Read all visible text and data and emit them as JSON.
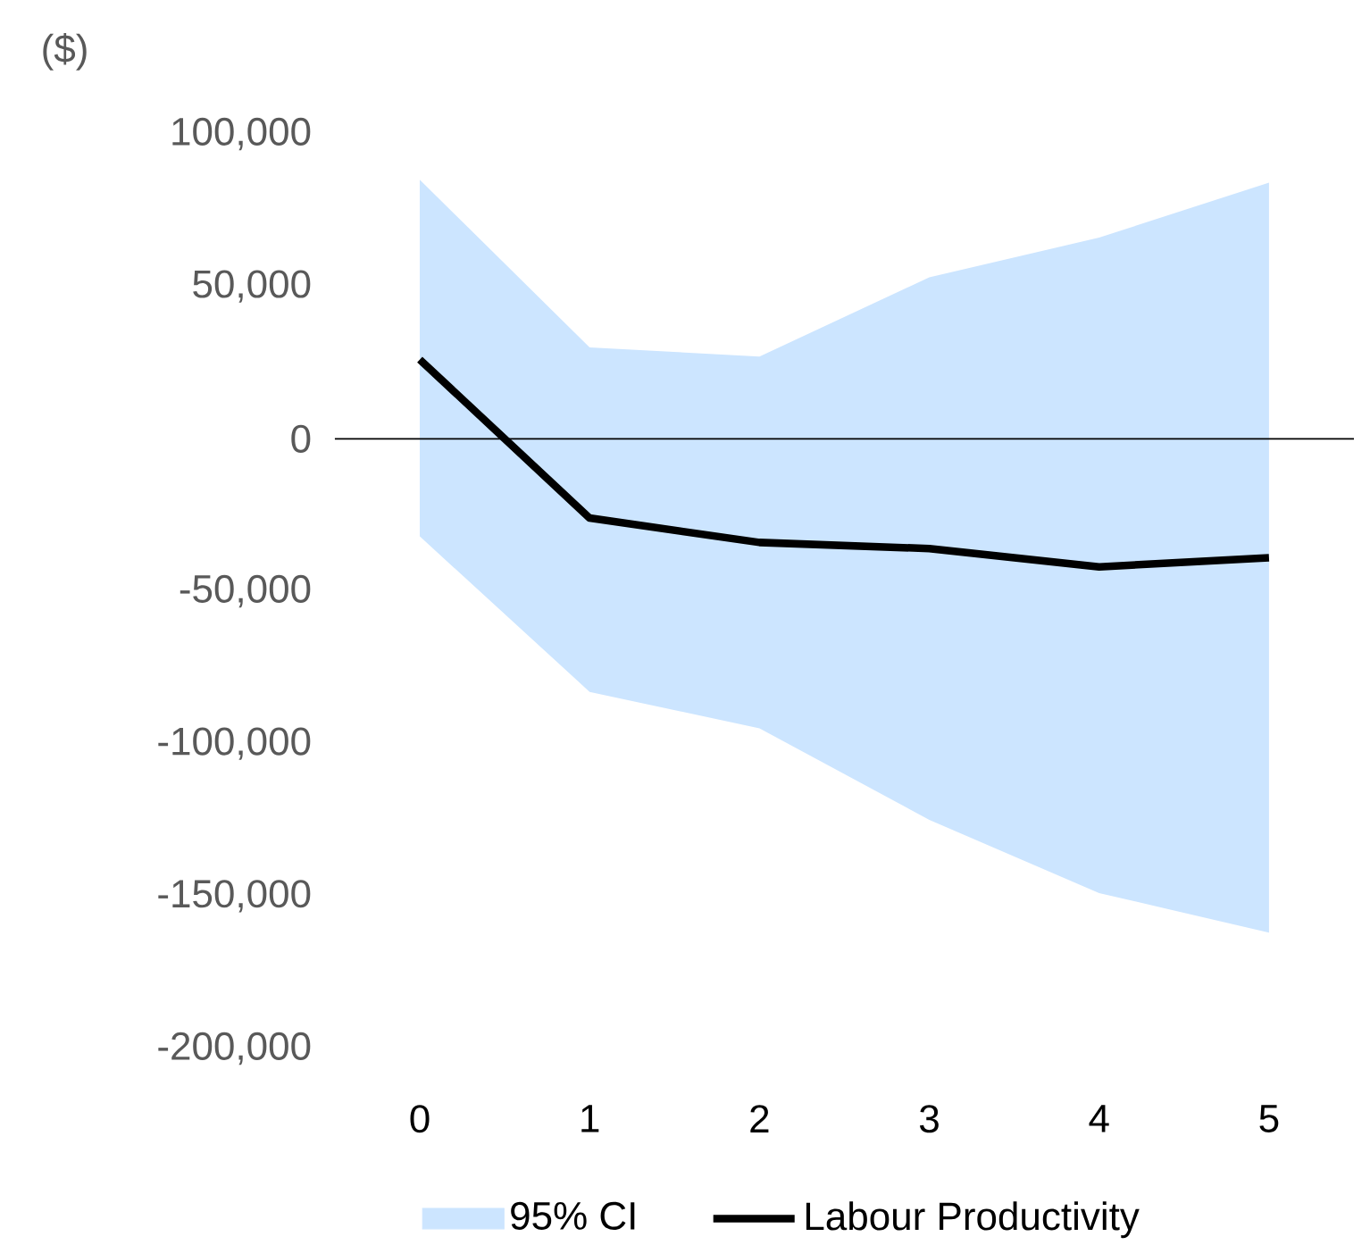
{
  "chart_data": {
    "type": "line",
    "ylabel": "($)",
    "categories": [
      "0",
      "1",
      "2",
      "3",
      "4",
      "5"
    ],
    "series": [
      {
        "name": "95% CI",
        "type": "area",
        "color": "#cce5ff",
        "values": [
          null,
          null,
          null,
          null,
          null,
          null
        ],
        "lower": [
          -32000,
          -83000,
          -95000,
          -125000,
          -149000,
          -162000
        ],
        "upper": [
          85000,
          30000,
          27000,
          53000,
          66000,
          84000
        ]
      },
      {
        "name": "Labour Productivity",
        "color": "#000000",
        "values": [
          26000,
          -26000,
          -34000,
          -36000,
          -42000,
          -39000
        ]
      }
    ],
    "ylim": [
      -200000,
      100000
    ],
    "yticks": [
      {
        "value": -200000,
        "label": "-200,000"
      },
      {
        "value": -150000,
        "label": "-150,000"
      },
      {
        "value": -100000,
        "label": "-100,000"
      },
      {
        "value": -50000,
        "label": "-50,000"
      },
      0,
      {
        "value": 50000,
        "label": "50,000"
      },
      {
        "value": 100000,
        "label": "100,000"
      }
    ],
    "ref_lines": [
      {
        "axis": "y",
        "value": 0,
        "color": "#000000"
      }
    ],
    "grid": false,
    "legend": "bottom",
    "marker": "none",
    "line_style": "solid"
  }
}
